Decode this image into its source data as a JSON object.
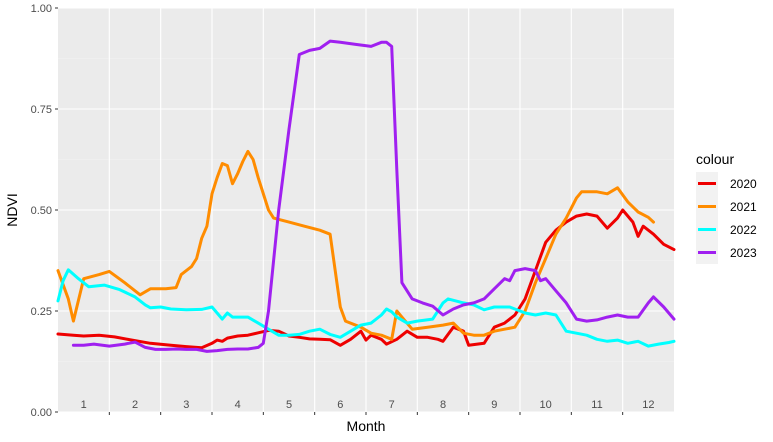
{
  "chart_data": {
    "type": "line",
    "title": "",
    "xlabel": "Month",
    "ylabel": "NDVI",
    "xlim": [
      0.5,
      12.5
    ],
    "ylim": [
      0,
      1
    ],
    "x_tick_labels": [
      "1",
      "2",
      "3",
      "4",
      "5",
      "6",
      "7",
      "8",
      "9",
      "10",
      "11",
      "12"
    ],
    "y_tick_labels": [
      "0.00",
      "0.25",
      "0.50",
      "0.75",
      "1.00"
    ],
    "y_ticks": [
      0,
      0.25,
      0.5,
      0.75,
      1.0
    ],
    "grid": true,
    "legend_title": "colour",
    "legend_position": "right",
    "series": [
      {
        "name": "2020",
        "color": "#ee0000",
        "points": [
          [
            0.5,
            0.193
          ],
          [
            0.8,
            0.19
          ],
          [
            1.0,
            0.188
          ],
          [
            1.3,
            0.19
          ],
          [
            1.6,
            0.186
          ],
          [
            1.9,
            0.179
          ],
          [
            2.3,
            0.17
          ],
          [
            2.7,
            0.165
          ],
          [
            3.0,
            0.162
          ],
          [
            3.3,
            0.159
          ],
          [
            3.5,
            0.17
          ],
          [
            3.6,
            0.178
          ],
          [
            3.7,
            0.175
          ],
          [
            3.8,
            0.183
          ],
          [
            4.0,
            0.188
          ],
          [
            4.2,
            0.19
          ],
          [
            4.4,
            0.196
          ],
          [
            4.6,
            0.202
          ],
          [
            4.8,
            0.2
          ],
          [
            5.0,
            0.188
          ],
          [
            5.2,
            0.185
          ],
          [
            5.4,
            0.181
          ],
          [
            5.6,
            0.18
          ],
          [
            5.8,
            0.179
          ],
          [
            6.0,
            0.165
          ],
          [
            6.2,
            0.18
          ],
          [
            6.4,
            0.2
          ],
          [
            6.5,
            0.178
          ],
          [
            6.6,
            0.19
          ],
          [
            6.8,
            0.18
          ],
          [
            6.9,
            0.168
          ],
          [
            7.1,
            0.18
          ],
          [
            7.3,
            0.2
          ],
          [
            7.5,
            0.185
          ],
          [
            7.7,
            0.185
          ],
          [
            7.9,
            0.18
          ],
          [
            8.0,
            0.175
          ],
          [
            8.2,
            0.21
          ],
          [
            8.4,
            0.2
          ],
          [
            8.5,
            0.165
          ],
          [
            8.8,
            0.17
          ],
          [
            9.0,
            0.21
          ],
          [
            9.2,
            0.22
          ],
          [
            9.4,
            0.24
          ],
          [
            9.6,
            0.28
          ],
          [
            9.8,
            0.35
          ],
          [
            10.0,
            0.42
          ],
          [
            10.2,
            0.45
          ],
          [
            10.4,
            0.47
          ],
          [
            10.6,
            0.485
          ],
          [
            10.8,
            0.49
          ],
          [
            11.0,
            0.485
          ],
          [
            11.2,
            0.455
          ],
          [
            11.4,
            0.48
          ],
          [
            11.5,
            0.5
          ],
          [
            11.7,
            0.47
          ],
          [
            11.8,
            0.435
          ],
          [
            11.9,
            0.46
          ],
          [
            12.1,
            0.44
          ],
          [
            12.3,
            0.415
          ],
          [
            12.5,
            0.402
          ]
        ]
      },
      {
        "name": "2021",
        "color": "#ff8c00",
        "points": [
          [
            0.5,
            0.35
          ],
          [
            0.7,
            0.28
          ],
          [
            0.8,
            0.225
          ],
          [
            1.0,
            0.33
          ],
          [
            1.3,
            0.34
          ],
          [
            1.5,
            0.348
          ],
          [
            1.8,
            0.32
          ],
          [
            2.1,
            0.29
          ],
          [
            2.3,
            0.305
          ],
          [
            2.6,
            0.305
          ],
          [
            2.8,
            0.308
          ],
          [
            2.9,
            0.34
          ],
          [
            3.1,
            0.36
          ],
          [
            3.2,
            0.38
          ],
          [
            3.3,
            0.43
          ],
          [
            3.4,
            0.46
          ],
          [
            3.5,
            0.54
          ],
          [
            3.6,
            0.58
          ],
          [
            3.7,
            0.615
          ],
          [
            3.8,
            0.61
          ],
          [
            3.9,
            0.565
          ],
          [
            4.0,
            0.59
          ],
          [
            4.1,
            0.62
          ],
          [
            4.2,
            0.645
          ],
          [
            4.3,
            0.625
          ],
          [
            4.4,
            0.58
          ],
          [
            4.6,
            0.5
          ],
          [
            4.7,
            0.48
          ],
          [
            5.0,
            0.47
          ],
          [
            5.3,
            0.46
          ],
          [
            5.6,
            0.45
          ],
          [
            5.8,
            0.44
          ],
          [
            5.9,
            0.35
          ],
          [
            6.0,
            0.26
          ],
          [
            6.1,
            0.225
          ],
          [
            6.4,
            0.21
          ],
          [
            6.6,
            0.195
          ],
          [
            6.8,
            0.19
          ],
          [
            7.0,
            0.18
          ],
          [
            7.1,
            0.25
          ],
          [
            7.2,
            0.235
          ],
          [
            7.4,
            0.205
          ],
          [
            7.7,
            0.21
          ],
          [
            8.0,
            0.215
          ],
          [
            8.2,
            0.22
          ],
          [
            8.4,
            0.195
          ],
          [
            8.6,
            0.19
          ],
          [
            8.8,
            0.19
          ],
          [
            9.0,
            0.2
          ],
          [
            9.2,
            0.205
          ],
          [
            9.4,
            0.21
          ],
          [
            9.6,
            0.25
          ],
          [
            9.8,
            0.32
          ],
          [
            10.0,
            0.38
          ],
          [
            10.2,
            0.44
          ],
          [
            10.4,
            0.48
          ],
          [
            10.6,
            0.53
          ],
          [
            10.7,
            0.545
          ],
          [
            11.0,
            0.545
          ],
          [
            11.2,
            0.54
          ],
          [
            11.4,
            0.555
          ],
          [
            11.6,
            0.52
          ],
          [
            11.8,
            0.495
          ],
          [
            12.0,
            0.482
          ],
          [
            12.1,
            0.47
          ]
        ]
      },
      {
        "name": "2022",
        "color": "#00ffff",
        "points": [
          [
            0.5,
            0.275
          ],
          [
            0.6,
            0.325
          ],
          [
            0.7,
            0.352
          ],
          [
            0.9,
            0.33
          ],
          [
            1.1,
            0.31
          ],
          [
            1.4,
            0.314
          ],
          [
            1.7,
            0.303
          ],
          [
            2.0,
            0.285
          ],
          [
            2.2,
            0.265
          ],
          [
            2.3,
            0.258
          ],
          [
            2.5,
            0.26
          ],
          [
            2.7,
            0.255
          ],
          [
            3.0,
            0.253
          ],
          [
            3.3,
            0.254
          ],
          [
            3.5,
            0.26
          ],
          [
            3.6,
            0.245
          ],
          [
            3.7,
            0.23
          ],
          [
            3.8,
            0.245
          ],
          [
            3.9,
            0.235
          ],
          [
            4.2,
            0.235
          ],
          [
            4.4,
            0.22
          ],
          [
            4.6,
            0.205
          ],
          [
            4.8,
            0.19
          ],
          [
            5.0,
            0.19
          ],
          [
            5.2,
            0.192
          ],
          [
            5.4,
            0.2
          ],
          [
            5.6,
            0.205
          ],
          [
            5.8,
            0.192
          ],
          [
            6.0,
            0.185
          ],
          [
            6.2,
            0.2
          ],
          [
            6.4,
            0.215
          ],
          [
            6.6,
            0.22
          ],
          [
            6.8,
            0.24
          ],
          [
            6.9,
            0.255
          ],
          [
            7.0,
            0.248
          ],
          [
            7.1,
            0.235
          ],
          [
            7.3,
            0.22
          ],
          [
            7.5,
            0.225
          ],
          [
            7.8,
            0.23
          ],
          [
            8.0,
            0.27
          ],
          [
            8.1,
            0.28
          ],
          [
            8.4,
            0.27
          ],
          [
            8.6,
            0.265
          ],
          [
            8.8,
            0.253
          ],
          [
            9.0,
            0.26
          ],
          [
            9.3,
            0.26
          ],
          [
            9.5,
            0.25
          ],
          [
            9.6,
            0.245
          ],
          [
            9.8,
            0.24
          ],
          [
            10.0,
            0.245
          ],
          [
            10.2,
            0.24
          ],
          [
            10.4,
            0.2
          ],
          [
            10.6,
            0.195
          ],
          [
            10.8,
            0.19
          ],
          [
            11.0,
            0.18
          ],
          [
            11.2,
            0.175
          ],
          [
            11.4,
            0.178
          ],
          [
            11.6,
            0.17
          ],
          [
            11.8,
            0.175
          ],
          [
            12.0,
            0.163
          ],
          [
            12.2,
            0.168
          ],
          [
            12.4,
            0.172
          ],
          [
            12.5,
            0.175
          ]
        ]
      },
      {
        "name": "2023",
        "color": "#a020f0",
        "points": [
          [
            0.8,
            0.165
          ],
          [
            1.0,
            0.165
          ],
          [
            1.2,
            0.168
          ],
          [
            1.5,
            0.163
          ],
          [
            1.8,
            0.168
          ],
          [
            2.0,
            0.173
          ],
          [
            2.2,
            0.16
          ],
          [
            2.4,
            0.155
          ],
          [
            2.6,
            0.155
          ],
          [
            2.8,
            0.156
          ],
          [
            3.0,
            0.155
          ],
          [
            3.2,
            0.155
          ],
          [
            3.4,
            0.15
          ],
          [
            3.6,
            0.152
          ],
          [
            3.8,
            0.155
          ],
          [
            4.0,
            0.156
          ],
          [
            4.2,
            0.156
          ],
          [
            4.4,
            0.16
          ],
          [
            4.5,
            0.17
          ],
          [
            4.6,
            0.25
          ],
          [
            4.8,
            0.5
          ],
          [
            5.0,
            0.7
          ],
          [
            5.2,
            0.885
          ],
          [
            5.4,
            0.895
          ],
          [
            5.6,
            0.9
          ],
          [
            5.8,
            0.918
          ],
          [
            6.0,
            0.915
          ],
          [
            6.3,
            0.91
          ],
          [
            6.6,
            0.905
          ],
          [
            6.8,
            0.915
          ],
          [
            6.9,
            0.915
          ],
          [
            7.0,
            0.905
          ],
          [
            7.1,
            0.6
          ],
          [
            7.2,
            0.32
          ],
          [
            7.4,
            0.28
          ],
          [
            7.6,
            0.27
          ],
          [
            7.8,
            0.262
          ],
          [
            8.0,
            0.24
          ],
          [
            8.2,
            0.255
          ],
          [
            8.4,
            0.265
          ],
          [
            8.6,
            0.27
          ],
          [
            8.8,
            0.28
          ],
          [
            9.0,
            0.305
          ],
          [
            9.2,
            0.33
          ],
          [
            9.3,
            0.325
          ],
          [
            9.4,
            0.35
          ],
          [
            9.6,
            0.355
          ],
          [
            9.8,
            0.35
          ],
          [
            9.9,
            0.325
          ],
          [
            10.0,
            0.33
          ],
          [
            10.2,
            0.3
          ],
          [
            10.4,
            0.27
          ],
          [
            10.6,
            0.23
          ],
          [
            10.8,
            0.225
          ],
          [
            11.0,
            0.228
          ],
          [
            11.2,
            0.235
          ],
          [
            11.4,
            0.24
          ],
          [
            11.6,
            0.235
          ],
          [
            11.8,
            0.235
          ],
          [
            12.0,
            0.27
          ],
          [
            12.1,
            0.285
          ],
          [
            12.3,
            0.26
          ],
          [
            12.5,
            0.23
          ]
        ]
      }
    ]
  }
}
